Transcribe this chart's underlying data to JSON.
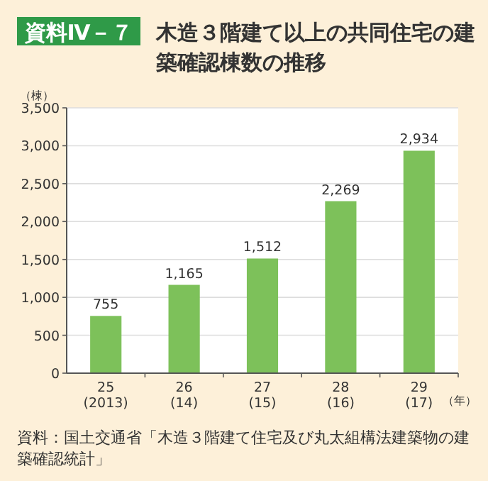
{
  "chart_data": {
    "type": "bar",
    "title": "木造３階建て以上の共同住宅の建築確認棟数の推移",
    "subtitle": "資料Ⅳ－７",
    "ylabel": "（棟）",
    "xlabel": "（年）",
    "categories": [
      "25\n(2013)",
      "26\n(14)",
      "27\n(15)",
      "28\n(16)",
      "29\n(17)"
    ],
    "values": [
      755,
      1165,
      1512,
      2269,
      2934
    ],
    "color": "#7dc15a",
    "ylim": [
      0,
      3500
    ],
    "yticks": [
      {
        "value": 0,
        "label": "0"
      },
      {
        "value": 500,
        "label": "500"
      },
      {
        "value": 1000,
        "label": "1,000"
      },
      {
        "value": 1500,
        "label": "1,500"
      },
      {
        "value": 2000,
        "label": "2,000"
      },
      {
        "value": 2500,
        "label": "2,500"
      },
      {
        "value": 3000,
        "label": "3,000"
      },
      {
        "value": 3500,
        "label": "3,500"
      }
    ],
    "value_labels": [
      "755",
      "1,165",
      "1,512",
      "2,269",
      "2,934"
    ],
    "grid": "y",
    "annotations": [
      "資料：国土交通省「木造３階建て住宅及び丸太組構法建築物の建築確認統計」"
    ]
  }
}
